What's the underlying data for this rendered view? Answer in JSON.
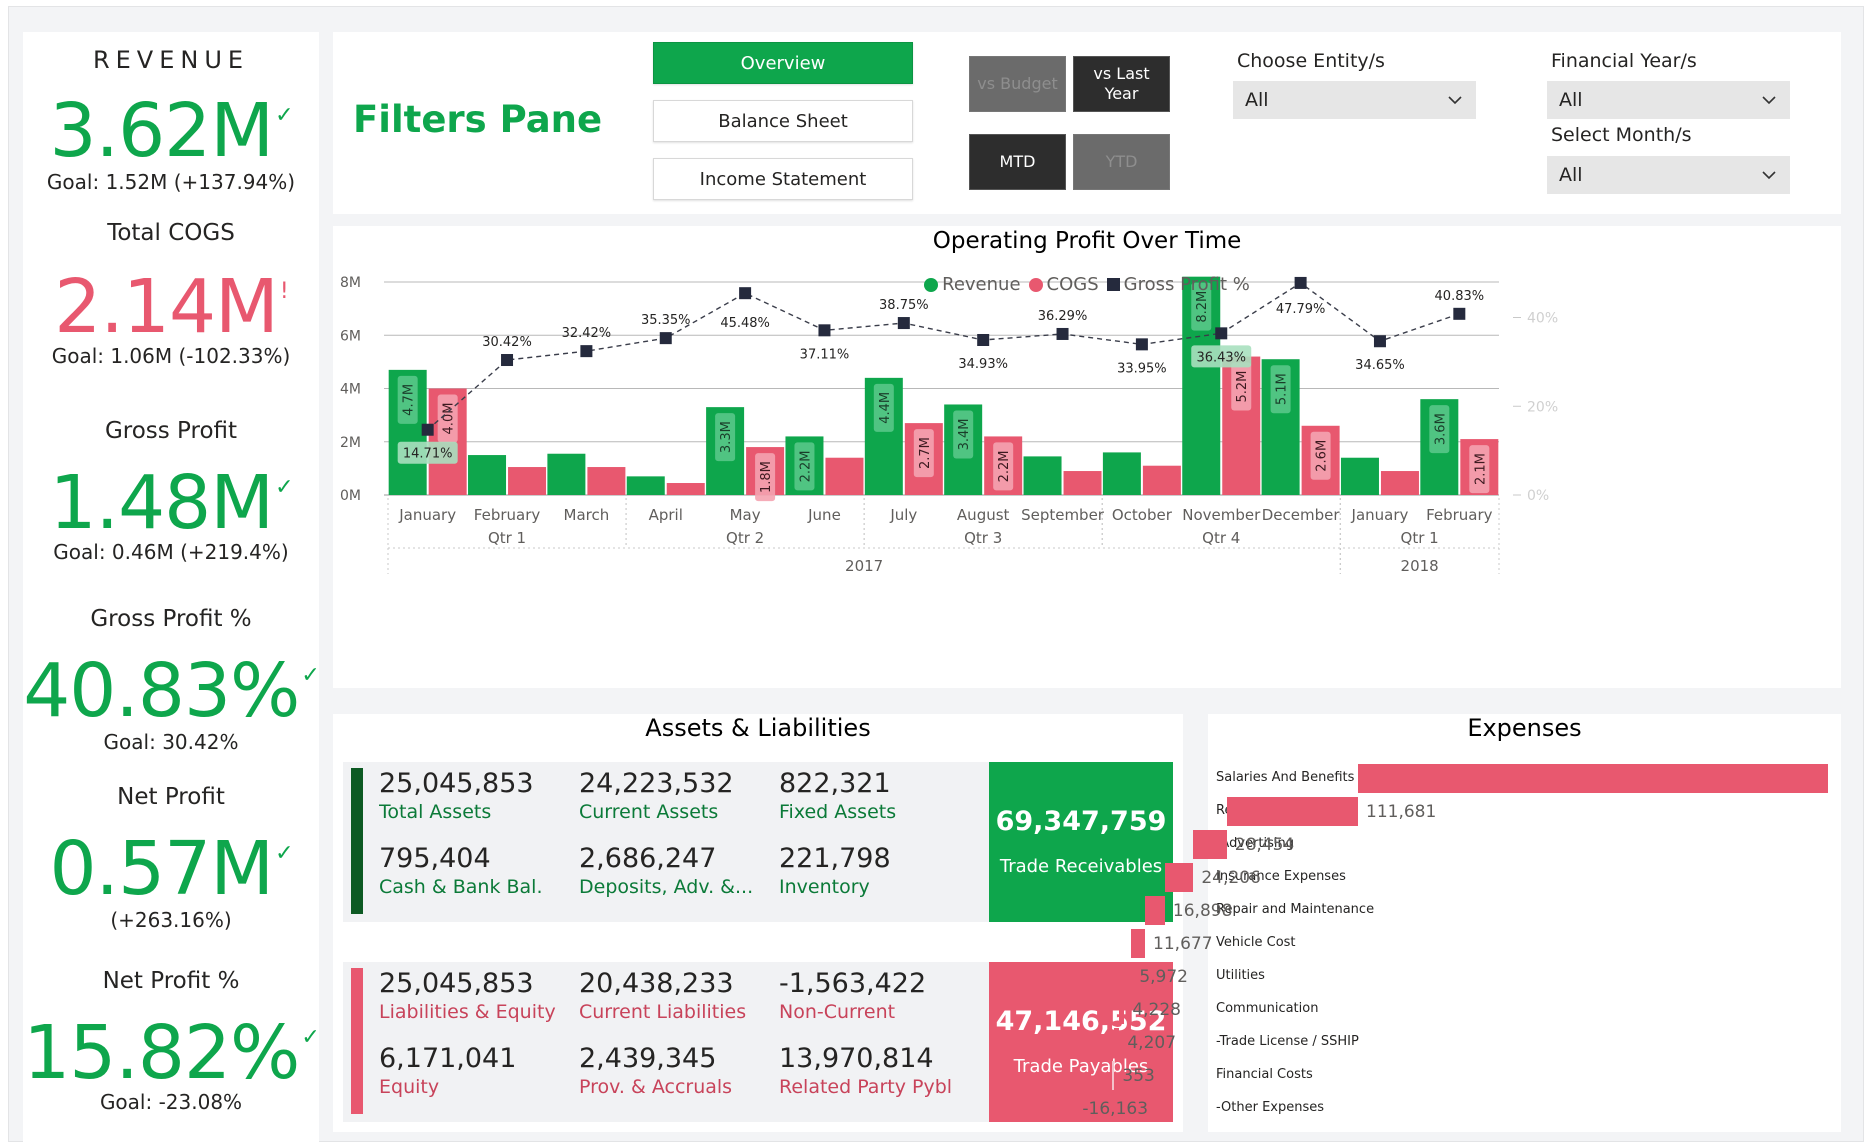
{
  "kpis": [
    {
      "title": "REVENUE",
      "value": "3.62M",
      "mark": "✓",
      "goal": "Goal: 1.52M (+137.94%)",
      "status": "good"
    },
    {
      "title": "Total COGS",
      "value": "2.14M",
      "mark": "!",
      "goal": "Goal: 1.06M (-102.33%)",
      "status": "bad"
    },
    {
      "title": "Gross Profit",
      "value": "1.48M",
      "mark": "✓",
      "goal": "Goal: 0.46M (+219.4%)",
      "status": "good"
    },
    {
      "title": "Gross Profit %",
      "value": "40.83%",
      "mark": "✓",
      "goal": "Goal: 30.42%",
      "status": "good"
    },
    {
      "title": "Net Profit",
      "value": "0.57M",
      "mark": "✓",
      "goal": "(+263.16%)",
      "status": "good"
    },
    {
      "title": "Net Profit %",
      "value": "15.82%",
      "mark": "✓",
      "goal": "Goal: -23.08%",
      "status": "good"
    }
  ],
  "filters": {
    "title": "Filters Pane",
    "nav": [
      {
        "label": "Overview",
        "active": true
      },
      {
        "label": "Balance Sheet",
        "active": false
      },
      {
        "label": "Income Statement",
        "active": false
      }
    ],
    "toggles": {
      "vs_budget": "vs Budget",
      "vs_last_year": "vs Last Year",
      "mtd": "MTD",
      "ytd": "YTD"
    },
    "entity_label": "Choose Entity/s",
    "entity_value": "All",
    "year_label": "Financial Year/s",
    "year_value": "All",
    "month_label": "Select Month/s",
    "month_value": "All"
  },
  "chart_data": {
    "type": "bar",
    "title": "Operating Profit Over Time",
    "categories": [
      "January",
      "February",
      "March",
      "April",
      "May",
      "June",
      "July",
      "August",
      "September",
      "October",
      "November",
      "December",
      "January",
      "February"
    ],
    "quarters": [
      {
        "label": "Qtr 1",
        "start": 0,
        "end": 2
      },
      {
        "label": "Qtr 2",
        "start": 3,
        "end": 5
      },
      {
        "label": "Qtr 3",
        "start": 6,
        "end": 8
      },
      {
        "label": "Qtr 4",
        "start": 9,
        "end": 11
      },
      {
        "label": "Qtr 1",
        "start": 12,
        "end": 13
      }
    ],
    "years": [
      {
        "label": "2017",
        "start": 0,
        "end": 11
      },
      {
        "label": "2018",
        "start": 12,
        "end": 13
      }
    ],
    "series": [
      {
        "name": "Revenue",
        "type": "bar",
        "color": "#0ea64c",
        "values": [
          4.7,
          1.5,
          1.55,
          0.7,
          3.3,
          2.2,
          4.4,
          3.4,
          1.45,
          1.6,
          8.2,
          5.1,
          1.4,
          3.6
        ],
        "labels": [
          "4.7M",
          "",
          "",
          "",
          "3.3M",
          "2.2M",
          "4.4M",
          "3.4M",
          "",
          "",
          "8.2M",
          "5.1M",
          "",
          "3.6M"
        ]
      },
      {
        "name": "COGS",
        "type": "bar",
        "color": "#e8586f",
        "values": [
          4.0,
          1.05,
          1.05,
          0.45,
          1.8,
          1.4,
          2.7,
          2.2,
          0.9,
          1.1,
          5.2,
          2.6,
          0.9,
          2.1
        ],
        "labels": [
          "4.0M",
          "",
          "",
          "",
          "1.8M",
          "",
          "2.7M",
          "2.2M",
          "",
          "",
          "5.2M",
          "2.6M",
          "",
          "2.1M"
        ]
      },
      {
        "name": "Gross Profit %",
        "type": "line",
        "color": "#252a3d",
        "values": [
          14.71,
          30.42,
          32.42,
          35.35,
          45.48,
          37.11,
          38.75,
          34.93,
          36.29,
          33.95,
          36.43,
          47.79,
          34.65,
          40.83
        ],
        "labels": [
          "14.71%",
          "30.42%",
          "32.42%",
          "35.35%",
          "45.48%",
          "37.11%",
          "38.75%",
          "34.93%",
          "36.29%",
          "33.95%",
          "36.43%",
          "47.79%",
          "34.65%",
          "40.83%"
        ]
      }
    ],
    "y_left_ticks": [
      "0M",
      "2M",
      "4M",
      "6M",
      "8M"
    ],
    "y_left_values": [
      0,
      2,
      4,
      6,
      8
    ],
    "ylim": [
      0,
      8
    ],
    "y_right_ticks": [
      "0%",
      "20%",
      "40%"
    ],
    "y_right_values": [
      0,
      20,
      40
    ],
    "y2lim": [
      0,
      48
    ],
    "legend": "top-center",
    "grid": true
  },
  "assets": {
    "title": "Assets & Liabilities",
    "assets_items": [
      {
        "value": "25,045,853",
        "label": "Total Assets"
      },
      {
        "value": "24,223,532",
        "label": "Current Assets"
      },
      {
        "value": "822,321",
        "label": "Fixed Assets"
      },
      {
        "value": "795,404",
        "label": "Cash & Bank Bal."
      },
      {
        "value": "2,686,247",
        "label": "Deposits, Adv. &..."
      },
      {
        "value": "221,798",
        "label": "Inventory"
      }
    ],
    "receivables": {
      "value": "69,347,759",
      "label": "Trade Receivables"
    },
    "liab_items": [
      {
        "value": "25,045,853",
        "label": "Liabilities & Equity"
      },
      {
        "value": "20,438,233",
        "label": "Current Liabilities"
      },
      {
        "value": "-1,563,422",
        "label": "Non-Current"
      },
      {
        "value": "6,171,041",
        "label": "Equity"
      },
      {
        "value": "2,439,345",
        "label": "Prov. & Accruals"
      },
      {
        "value": "13,970,814",
        "label": "Related Party Pybl"
      }
    ],
    "payables": {
      "value": "47,146,552",
      "label": "Trade Payables"
    }
  },
  "expenses": {
    "title": "Expenses",
    "items": [
      {
        "label": "Salaries And Benefits",
        "value": 400000,
        "display": ""
      },
      {
        "label": "Rent Expenses",
        "value": 111681,
        "display": "111,681"
      },
      {
        "label": "-Advertising",
        "value": 28454,
        "display": "28,454"
      },
      {
        "label": "Insurance Expenses",
        "value": 24206,
        "display": "24,206"
      },
      {
        "label": "Repair and Maintenance",
        "value": 16898,
        "display": "16,898"
      },
      {
        "label": "Vehicle Cost",
        "value": 11677,
        "display": "11,677"
      },
      {
        "label": "Utilities",
        "value": 5972,
        "display": "5,972"
      },
      {
        "label": "Communication",
        "value": 4228,
        "display": "4,228"
      },
      {
        "label": "-Trade License / SSHIP",
        "value": 4207,
        "display": "4,207"
      },
      {
        "label": "Financial Costs",
        "value": 353,
        "display": "353"
      },
      {
        "label": "-Other Expenses",
        "value": -16163,
        "display": "-16,163"
      }
    ]
  },
  "colors": {
    "green": "#0ea64c",
    "red": "#e8586f",
    "dark": "#2d2d2d"
  }
}
